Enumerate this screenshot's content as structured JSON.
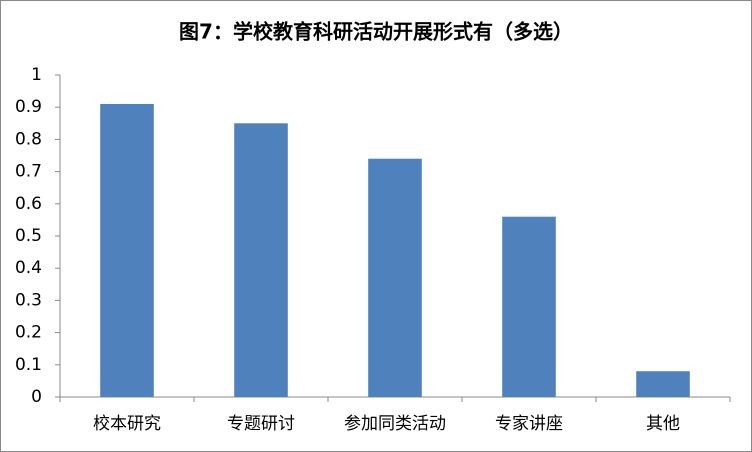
{
  "chart_data": {
    "type": "bar",
    "title": "图7：学校教育科研活动开展形式有（多选）",
    "categories": [
      "校本研究",
      "专题研讨",
      "参加同类活动",
      "专家讲座",
      "其他"
    ],
    "values": [
      0.91,
      0.85,
      0.74,
      0.56,
      0.08
    ],
    "color": "#4f81bd",
    "ylim": [
      0,
      1
    ],
    "yticks": [
      0,
      0.1,
      0.2,
      0.3,
      0.4,
      0.5,
      0.6,
      0.7,
      0.8,
      0.9,
      1
    ],
    "grid": false
  }
}
